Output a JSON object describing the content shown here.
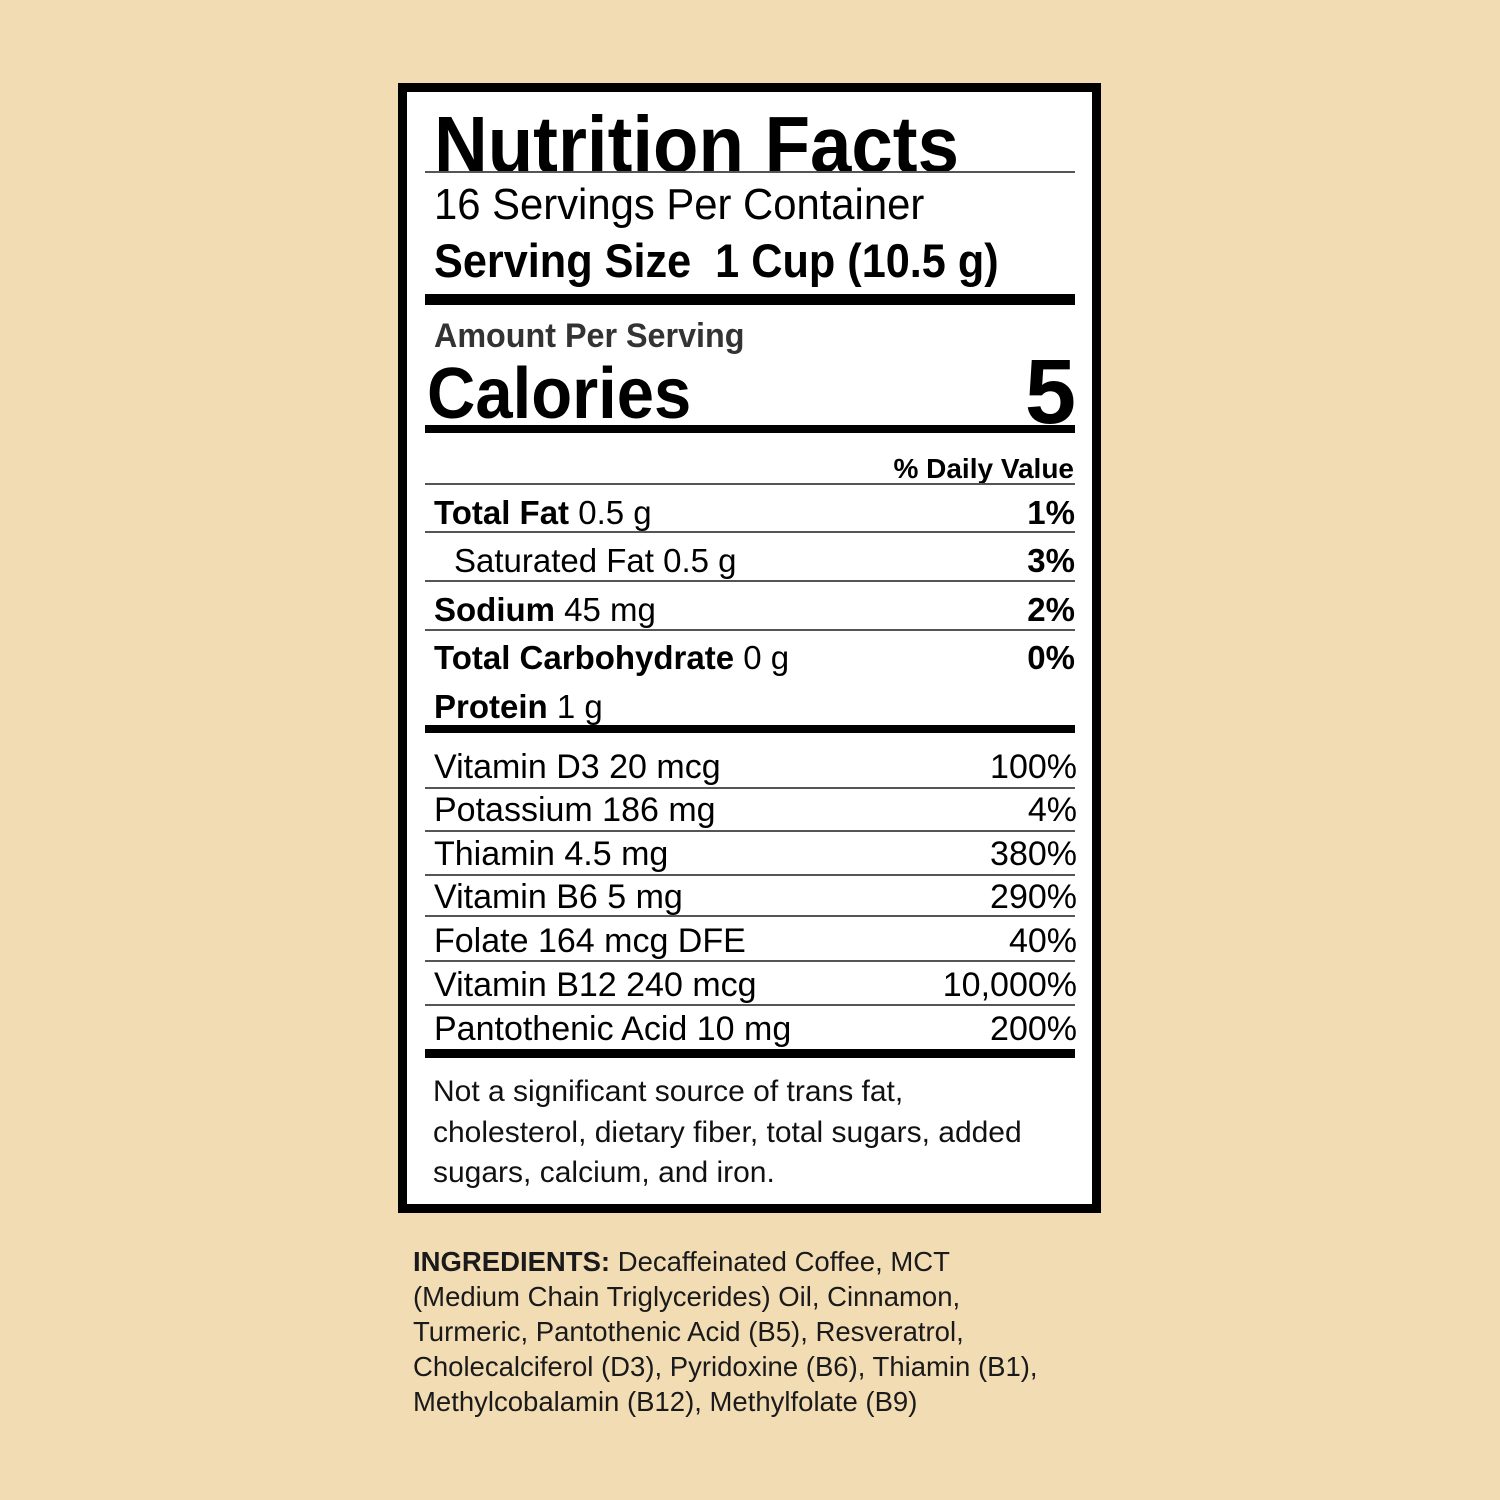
{
  "title": "Nutrition Facts",
  "servings_per_container": "16 Servings Per Container",
  "serving_size_label": "Serving Size",
  "serving_size_value": "1 Cup (10.5 g)",
  "amount_per_serving": "Amount Per Serving",
  "calories_label": "Calories",
  "calories_value": "5",
  "daily_value_header": "% Daily Value",
  "nutrients": [
    {
      "name": "Total Fat",
      "amount": "0.5 g",
      "dv": "1%"
    },
    {
      "name": "Saturated Fat",
      "amount": "0.5 g",
      "dv": "3%"
    },
    {
      "name": "Sodium",
      "amount": "45 mg",
      "dv": "2%"
    },
    {
      "name": "Total Carbohydrate",
      "amount": "0 g",
      "dv": "0%"
    },
    {
      "name": "Protein",
      "amount": "1 g",
      "dv": ""
    }
  ],
  "vitamins": [
    {
      "label": "Vitamin D3 20 mcg",
      "dv": "100%"
    },
    {
      "label": "Potassium 186 mg",
      "dv": "4%"
    },
    {
      "label": "Thiamin 4.5 mg",
      "dv": "380%"
    },
    {
      "label": "Vitamin B6 5 mg",
      "dv": "290%"
    },
    {
      "label": "Folate 164 mcg DFE",
      "dv": "40%"
    },
    {
      "label": "Vitamin B12 240 mcg",
      "dv": "10,000%"
    },
    {
      "label": "Pantothenic Acid 10 mg",
      "dv": "200%"
    }
  ],
  "footnote": "Not a significant source of trans fat, cholesterol, dietary fiber, total sugars, added sugars, calcium, and iron.",
  "ingredients_label": "INGREDIENTS:",
  "ingredients_text": "Decaffeinated Coffee, MCT (Medium Chain Triglycerides) Oil, Cinnamon, Turmeric, Pantothenic Acid (B5), Resveratrol, Cholecalciferol (D3), Pyridoxine (B6), Thiamin (B1), Methylcobalamin (B12), Methylfolate (B9)",
  "colors": {
    "background": "#f2dcb4",
    "label": "#ffffff",
    "ink": "#000000"
  }
}
